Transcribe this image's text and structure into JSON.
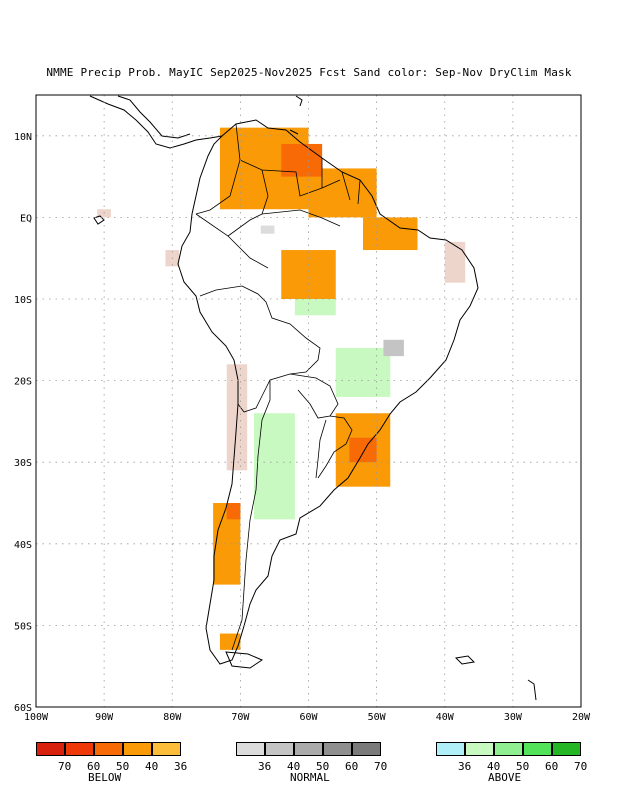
{
  "title": "NMME Precip Prob. MayIC  Sep2025-Nov2025 Fcst  Sand color: Sep-Nov DryClim Mask",
  "axes": {
    "lon_ticks": [
      "100W",
      "90W",
      "80W",
      "70W",
      "60W",
      "50W",
      "40W",
      "30W",
      "20W"
    ],
    "lon_values": [
      -100,
      -90,
      -80,
      -70,
      -60,
      -50,
      -40,
      -30,
      -20
    ],
    "lat_ticks": [
      "10N",
      "EQ",
      "10S",
      "20S",
      "30S",
      "40S",
      "50S",
      "60S"
    ],
    "lat_values": [
      10,
      0,
      -10,
      -20,
      -30,
      -40,
      -50,
      -60
    ],
    "lon_range": [
      -100,
      -20
    ],
    "lat_range": [
      -60,
      15
    ],
    "grid": "dotted"
  },
  "legend": {
    "below": {
      "title": "BELOW",
      "ticks": [
        "70",
        "60",
        "50",
        "40",
        "36"
      ],
      "colors": [
        "#d9220e",
        "#ee3a06",
        "#f86a06",
        "#f99a06",
        "#fbbd3a"
      ]
    },
    "normal": {
      "title": "NORMAL",
      "ticks": [
        "36",
        "40",
        "50",
        "60",
        "70"
      ],
      "colors": [
        "#dcdcdc",
        "#c4c4c4",
        "#ababab",
        "#8f8f8f",
        "#7a7a7a"
      ]
    },
    "above": {
      "title": "ABOVE",
      "ticks": [
        "36",
        "40",
        "50",
        "60",
        "70"
      ],
      "colors": [
        "#b0eef8",
        "#c8f9c0",
        "#90ef90",
        "#52e35a",
        "#24b624"
      ]
    }
  },
  "dryclim_color": "#edd5cc",
  "forecast_regions": [
    {
      "category": "below",
      "level": "40",
      "lon": [
        -73,
        -60
      ],
      "lat": [
        11,
        1
      ]
    },
    {
      "category": "below",
      "level": "40",
      "lon": [
        -60,
        -50
      ],
      "lat": [
        6,
        0
      ]
    },
    {
      "category": "below",
      "level": "40",
      "lon": [
        -52,
        -44
      ],
      "lat": [
        0,
        -4
      ]
    },
    {
      "category": "below",
      "level": "50",
      "lon": [
        -64,
        -58
      ],
      "lat": [
        9,
        5
      ]
    },
    {
      "category": "below",
      "level": "40",
      "lon": [
        -64,
        -56
      ],
      "lat": [
        -4,
        -10
      ]
    },
    {
      "category": "below",
      "level": "40",
      "lon": [
        -56,
        -48
      ],
      "lat": [
        -24,
        -33
      ]
    },
    {
      "category": "below",
      "level": "50",
      "lon": [
        -54,
        -50
      ],
      "lat": [
        -27,
        -30
      ]
    },
    {
      "category": "below",
      "level": "40",
      "lon": [
        -74,
        -70
      ],
      "lat": [
        -35,
        -45
      ]
    },
    {
      "category": "below",
      "level": "50",
      "lon": [
        -72,
        -70
      ],
      "lat": [
        -35,
        -37
      ]
    },
    {
      "category": "below",
      "level": "40",
      "lon": [
        -73,
        -70
      ],
      "lat": [
        -51,
        -53
      ]
    },
    {
      "category": "above",
      "level": "40",
      "lon": [
        -68,
        -62
      ],
      "lat": [
        -24,
        -37
      ]
    },
    {
      "category": "above",
      "level": "40",
      "lon": [
        -56,
        -48
      ],
      "lat": [
        -16,
        -22
      ]
    },
    {
      "category": "above",
      "level": "40",
      "lon": [
        -62,
        -56
      ],
      "lat": [
        -10,
        -12
      ]
    },
    {
      "category": "normal",
      "level": "40",
      "lon": [
        -49,
        -46
      ],
      "lat": [
        -15,
        -17
      ]
    },
    {
      "category": "normal",
      "level": "36",
      "lon": [
        -67,
        -65
      ],
      "lat": [
        -1,
        -2
      ]
    }
  ]
}
